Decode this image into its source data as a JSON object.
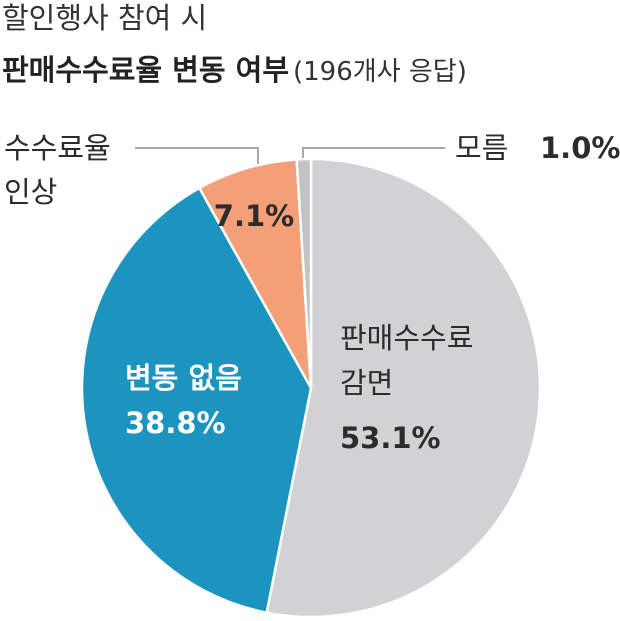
{
  "chart_data": {
    "type": "pie",
    "title": "할인행사 참여 시",
    "subtitle": "판매수수료율 변동 여부",
    "note": "(196개사 응답)",
    "categories": [
      [
        "판매수수료",
        "감면"
      ],
      [
        "변동 없음"
      ],
      [
        "수수료율",
        "인상"
      ],
      [
        "모름"
      ]
    ],
    "values": [
      53.1,
      38.8,
      7.1,
      1.0
    ],
    "value_labels": [
      "53.1%",
      "38.8%",
      "7.1%",
      "1.0%"
    ],
    "colors": [
      "#d2d2d4",
      "#1b95bf",
      "#f3a079",
      "#c2c3c5"
    ]
  }
}
